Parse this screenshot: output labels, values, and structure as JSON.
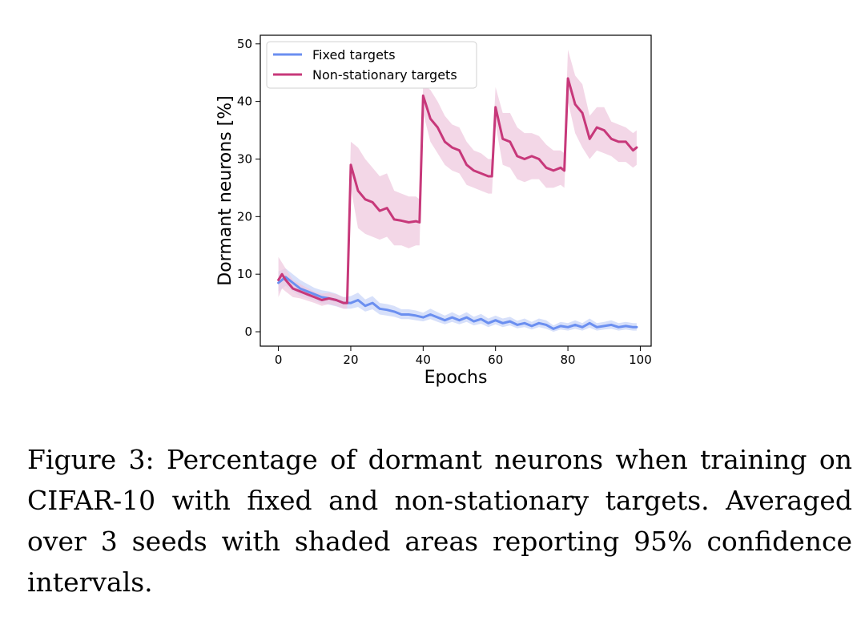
{
  "caption": "Figure 3: Percentage of dormant neurons when training on CIFAR-10 with fixed and non-stationary targets. Averaged over 3 seeds with shaded areas reporting 95% confidence intervals.",
  "chart_data": {
    "type": "line",
    "xlabel": "Epochs",
    "ylabel": "Dormant neurons [%]",
    "xlim": [
      -5,
      103
    ],
    "ylim": [
      -2.5,
      51.5
    ],
    "xticks": [
      0,
      20,
      40,
      60,
      80,
      100
    ],
    "yticks": [
      0,
      10,
      20,
      30,
      40,
      50
    ],
    "grid": false,
    "legend_position": "top-left",
    "series": [
      {
        "name": "Fixed targets",
        "color": "#6b8ff0",
        "band_color": "#c9d6f8",
        "x": [
          0,
          2,
          4,
          6,
          8,
          10,
          12,
          14,
          16,
          18,
          20,
          22,
          24,
          26,
          28,
          30,
          32,
          34,
          36,
          38,
          40,
          42,
          44,
          46,
          48,
          50,
          52,
          54,
          56,
          58,
          60,
          62,
          64,
          66,
          68,
          70,
          72,
          74,
          76,
          78,
          80,
          82,
          84,
          86,
          88,
          90,
          92,
          94,
          96,
          98,
          99
        ],
        "y": [
          8.5,
          9.5,
          8.5,
          7.5,
          7.0,
          6.5,
          6.0,
          5.8,
          5.5,
          5.0,
          5.0,
          5.5,
          4.5,
          5.0,
          4.0,
          3.8,
          3.5,
          3.0,
          3.0,
          2.8,
          2.5,
          3.0,
          2.5,
          2.0,
          2.5,
          2.0,
          2.5,
          1.8,
          2.2,
          1.5,
          2.0,
          1.5,
          1.8,
          1.2,
          1.5,
          1.0,
          1.5,
          1.2,
          0.5,
          1.0,
          0.8,
          1.2,
          0.8,
          1.5,
          0.8,
          1.0,
          1.2,
          0.8,
          1.0,
          0.8,
          0.8
        ],
        "lower": [
          7.0,
          8.0,
          7.0,
          6.2,
          5.8,
          5.4,
          4.9,
          4.7,
          4.4,
          4.0,
          4.0,
          4.3,
          3.5,
          3.9,
          3.0,
          2.8,
          2.6,
          2.2,
          2.2,
          2.0,
          1.8,
          2.2,
          1.7,
          1.3,
          1.7,
          1.3,
          1.7,
          1.1,
          1.4,
          0.8,
          1.3,
          0.8,
          1.1,
          0.6,
          0.8,
          0.4,
          0.8,
          0.5,
          0.0,
          0.4,
          0.2,
          0.5,
          0.2,
          0.7,
          0.2,
          0.4,
          0.5,
          0.2,
          0.4,
          0.2,
          0.2
        ],
        "upper": [
          10.5,
          11.0,
          10.0,
          9.0,
          8.3,
          7.6,
          7.2,
          7.0,
          6.6,
          6.0,
          6.2,
          6.8,
          5.6,
          6.2,
          5.0,
          4.8,
          4.5,
          3.9,
          3.9,
          3.7,
          3.3,
          4.0,
          3.4,
          2.8,
          3.4,
          2.8,
          3.4,
          2.6,
          3.1,
          2.3,
          2.8,
          2.3,
          2.6,
          1.9,
          2.3,
          1.7,
          2.3,
          2.0,
          1.1,
          1.7,
          1.5,
          2.0,
          1.5,
          2.3,
          1.5,
          1.7,
          2.0,
          1.5,
          1.7,
          1.5,
          1.5
        ]
      },
      {
        "name": "Non-stationary targets",
        "color": "#c7387a",
        "band_color": "#efcadf",
        "x": [
          0,
          1,
          2,
          4,
          6,
          8,
          10,
          12,
          14,
          16,
          18,
          19,
          20,
          22,
          24,
          26,
          28,
          30,
          32,
          34,
          36,
          38,
          39,
          40,
          42,
          44,
          46,
          48,
          50,
          52,
          54,
          56,
          58,
          59,
          60,
          62,
          64,
          66,
          68,
          70,
          72,
          74,
          76,
          78,
          79,
          80,
          82,
          84,
          86,
          88,
          90,
          92,
          94,
          96,
          98,
          99
        ],
        "y": [
          9.0,
          10.0,
          9.0,
          7.5,
          7.0,
          6.5,
          6.0,
          5.5,
          5.8,
          5.5,
          5.0,
          5.0,
          29.0,
          24.5,
          23.0,
          22.5,
          21.0,
          21.5,
          19.5,
          19.3,
          19.0,
          19.2,
          19.0,
          41.0,
          37.0,
          35.5,
          33.0,
          32.0,
          31.5,
          29.0,
          28.0,
          27.5,
          27.0,
          27.0,
          39.0,
          33.5,
          33.0,
          30.5,
          30.0,
          30.5,
          30.0,
          28.5,
          28.0,
          28.5,
          28.0,
          44.0,
          39.5,
          38.0,
          33.5,
          35.5,
          35.0,
          33.5,
          33.0,
          33.0,
          31.5,
          32.0
        ],
        "lower": [
          6.0,
          7.5,
          7.0,
          6.0,
          5.8,
          5.4,
          5.0,
          4.5,
          4.8,
          4.5,
          4.0,
          4.0,
          25.0,
          18.0,
          17.0,
          16.5,
          16.0,
          16.5,
          15.0,
          15.0,
          14.5,
          15.0,
          15.0,
          38.0,
          33.0,
          31.0,
          29.0,
          28.0,
          27.5,
          25.5,
          25.0,
          24.5,
          24.0,
          24.0,
          36.0,
          29.0,
          28.5,
          26.5,
          26.0,
          26.5,
          26.5,
          25.0,
          25.0,
          25.5,
          25.0,
          40.0,
          34.5,
          32.0,
          30.0,
          31.5,
          31.0,
          30.5,
          29.5,
          29.5,
          28.5,
          29.0
        ],
        "upper": [
          13.0,
          12.0,
          11.0,
          9.0,
          8.3,
          7.6,
          7.0,
          6.6,
          6.8,
          6.5,
          6.0,
          6.0,
          33.0,
          32.0,
          30.0,
          28.5,
          27.0,
          27.5,
          24.5,
          24.0,
          23.5,
          23.5,
          23.0,
          43.0,
          42.0,
          40.0,
          37.5,
          36.0,
          35.5,
          33.0,
          31.5,
          31.0,
          30.0,
          30.0,
          42.5,
          38.0,
          38.0,
          35.5,
          34.5,
          34.5,
          34.0,
          32.5,
          31.5,
          31.5,
          31.0,
          49.0,
          44.5,
          43.0,
          37.5,
          39.0,
          39.0,
          36.5,
          36.0,
          35.5,
          34.5,
          35.0
        ]
      }
    ]
  }
}
